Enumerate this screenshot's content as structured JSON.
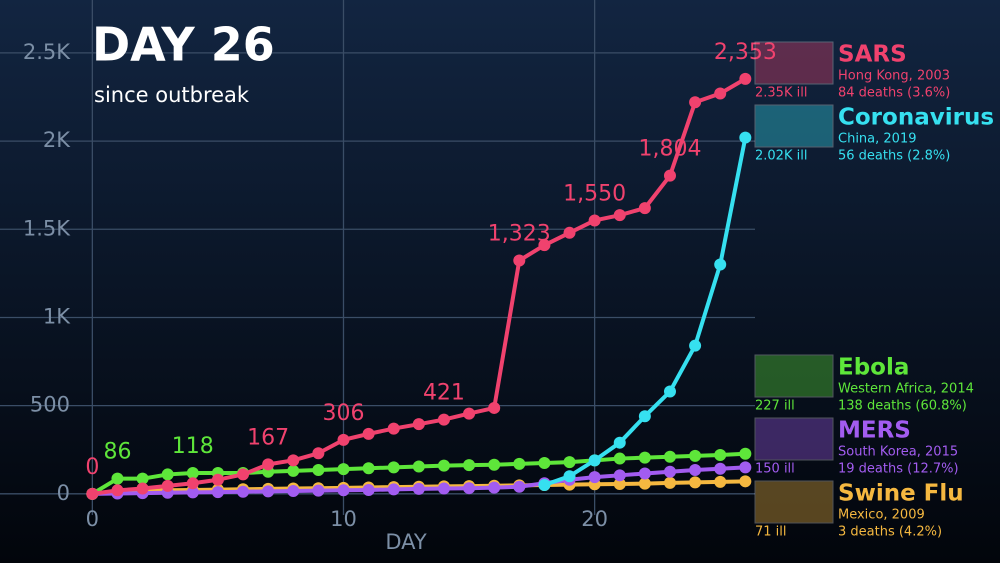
{
  "chart_data": {
    "type": "line",
    "title": "DAY 26",
    "subtitle": "since outbreak",
    "x_label": "DAY",
    "x": [
      0,
      1,
      2,
      3,
      4,
      5,
      6,
      7,
      8,
      9,
      10,
      11,
      12,
      13,
      14,
      15,
      16,
      17,
      18,
      19,
      20,
      21,
      22,
      23,
      24,
      25,
      26
    ],
    "xlim": [
      -3,
      27.5
    ],
    "xticks": [
      0,
      10,
      20
    ],
    "ylim": [
      -120,
      2800
    ],
    "yticks": [
      0,
      500,
      {
        "value": 1000,
        "label": "1K"
      },
      {
        "value": 1500,
        "label": "1.5K"
      },
      {
        "value": 2000,
        "label": "2K"
      },
      {
        "value": 2500,
        "label": "2.5K"
      }
    ],
    "grid": true,
    "series": [
      {
        "name": "SARS",
        "place": "Hong Kong, 2003",
        "ill": "2.35K ill",
        "deaths": "84 deaths (3.6%)",
        "color": "#f0426e",
        "values": [
          0,
          20,
          30,
          45,
          60,
          80,
          110,
          167,
          190,
          230,
          306,
          340,
          370,
          395,
          421,
          455,
          487,
          1323,
          1410,
          1480,
          1550,
          1580,
          1620,
          1804,
          2220,
          2270,
          2353
        ],
        "value_labels": [
          "0",
          null,
          null,
          null,
          null,
          null,
          null,
          "167",
          null,
          null,
          "306",
          null,
          null,
          null,
          "421",
          null,
          null,
          "1,323",
          null,
          null,
          "1,550",
          null,
          null,
          "1,804",
          null,
          null,
          "2,353"
        ]
      },
      {
        "name": "Coronavirus",
        "place": "China, 2019",
        "ill": "2.02K ill",
        "deaths": "56 deaths (2.8%)",
        "color": "#36e0f0",
        "values": [
          null,
          null,
          null,
          null,
          null,
          null,
          null,
          null,
          null,
          null,
          null,
          null,
          null,
          null,
          null,
          null,
          null,
          null,
          50,
          100,
          190,
          290,
          440,
          580,
          840,
          1300,
          2020
        ]
      },
      {
        "name": "Ebola",
        "place": "Western Africa, 2014",
        "ill": "227 ill",
        "deaths": "138 deaths (60.8%)",
        "color": "#5ee63a",
        "values": [
          0,
          86,
          86,
          110,
          118,
          118,
          118,
          125,
          130,
          135,
          140,
          145,
          150,
          155,
          160,
          163,
          165,
          170,
          175,
          180,
          190,
          200,
          205,
          210,
          215,
          220,
          227
        ],
        "value_labels": [
          null,
          "86",
          null,
          null,
          "118",
          null,
          null,
          null,
          null,
          null,
          null,
          null,
          null,
          null,
          null,
          null,
          null,
          null,
          null,
          null,
          null,
          null,
          null,
          null,
          null,
          null,
          null
        ]
      },
      {
        "name": "MERS",
        "place": "South Korea, 2015",
        "ill": "150 ill",
        "deaths": "19 deaths (12.7%)",
        "color": "#a25cf0",
        "values": [
          0,
          2,
          4,
          6,
          8,
          10,
          12,
          14,
          16,
          18,
          20,
          22,
          25,
          28,
          30,
          32,
          35,
          40,
          60,
          80,
          95,
          105,
          115,
          125,
          135,
          142,
          150
        ]
      },
      {
        "name": "Swine Flu",
        "place": "Mexico, 2009",
        "ill": "71 ill",
        "deaths": "3 deaths (4.2%)",
        "color": "#f5b840",
        "values": [
          0,
          10,
          15,
          20,
          22,
          24,
          26,
          28,
          30,
          32,
          34,
          36,
          38,
          40,
          42,
          44,
          46,
          48,
          50,
          52,
          54,
          56,
          58,
          62,
          65,
          68,
          71
        ]
      }
    ]
  }
}
